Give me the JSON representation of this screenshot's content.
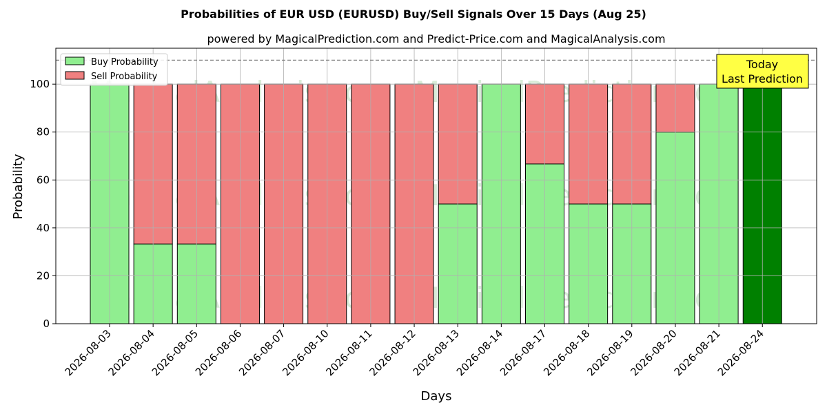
{
  "chart_data": {
    "type": "bar",
    "stacked": true,
    "title": "Probabilities of EUR USD (EURUSD) Buy/Sell Signals Over 15 Days (Aug 25)",
    "subtitle": "powered by MagicalPrediction.com and Predict-Price.com and MagicalAnalysis.com",
    "xlabel": "Days",
    "ylabel": "Probability",
    "ylim": [
      0,
      115
    ],
    "yticks": [
      0,
      20,
      40,
      60,
      80,
      100
    ],
    "grid": true,
    "legend_position": "top-left",
    "reference_line": 110,
    "categories": [
      "2026-08-03",
      "2026-08-04",
      "2026-08-05",
      "2026-08-06",
      "2026-08-07",
      "2026-08-10",
      "2026-08-11",
      "2026-08-12",
      "2026-08-13",
      "2026-08-14",
      "2026-08-17",
      "2026-08-18",
      "2026-08-19",
      "2026-08-20",
      "2026-08-21",
      "2026-08-24"
    ],
    "series": [
      {
        "name": "Buy Probability",
        "color": "#90ee90",
        "values": [
          100,
          33.3,
          33.3,
          0,
          0,
          0,
          0,
          0,
          50,
          100,
          66.7,
          50,
          50,
          80,
          100,
          100
        ]
      },
      {
        "name": "Sell Probability",
        "color": "#f08080",
        "values": [
          0,
          66.7,
          66.7,
          100,
          100,
          100,
          100,
          100,
          50,
          0,
          33.3,
          50,
          50,
          20,
          0,
          0
        ]
      }
    ],
    "highlight": {
      "index": 15,
      "color": "#008000"
    },
    "annotation": {
      "line1": "Today",
      "line2": "Last Prediction",
      "color": "#ffff44"
    },
    "watermarks": [
      "MagicalAnalysis.com",
      "MagicalPrediction.com"
    ]
  }
}
